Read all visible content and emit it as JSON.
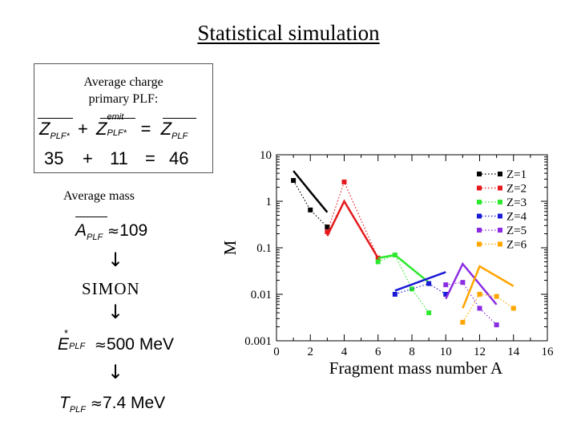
{
  "title": "Statistical simulation",
  "box": {
    "label_line1": "Average charge",
    "label_line2": "primary PLF:",
    "equation": {
      "term1": "Z",
      "sub1": "PLF*",
      "plus": "+",
      "term2": "Z",
      "sup2": "emit",
      "sub2": "PLF*",
      "equals": "=",
      "term3": "Z",
      "sub3": "PLF"
    },
    "values": {
      "v1": "35",
      "plus": "+",
      "v2": "11",
      "equals": "=",
      "v3": "46"
    }
  },
  "mass": {
    "label": "Average mass",
    "symbol": "A",
    "sub": "PLF",
    "approx": "≈",
    "value": "109"
  },
  "arrow": "↓",
  "simon": "SIMON",
  "energy": {
    "symbol": "E",
    "sup": "*",
    "sub": "PLF",
    "approx": "≈",
    "value": "500 MeV"
  },
  "temperature": {
    "symbol": "T",
    "sub": "PLF",
    "approx": "≈",
    "value": "7.4 MeV"
  },
  "chart_data": {
    "type": "line",
    "xlabel": "Fragment mass number A",
    "ylabel": "M",
    "xlim": [
      0,
      16
    ],
    "ylim": [
      0.001,
      10
    ],
    "yscale": "log",
    "xticks": [
      "0",
      "2",
      "4",
      "6",
      "8",
      "10",
      "12",
      "14",
      "16"
    ],
    "yticks": [
      "0.001",
      "0.01",
      "0.1",
      "1",
      "10"
    ],
    "legend_position": "top-right",
    "series": [
      {
        "name": "Z=1",
        "color": "#000000",
        "sim": [
          [
            1,
            4.5
          ],
          [
            2,
            1.6
          ],
          [
            3,
            0.58
          ]
        ],
        "exp": [
          [
            1,
            2.8
          ],
          [
            2,
            0.65
          ],
          [
            3,
            0.28
          ]
        ]
      },
      {
        "name": "Z=2",
        "color": "#e41a1c",
        "sim": [
          [
            3,
            0.18
          ],
          [
            4,
            1.0
          ],
          [
            6,
            0.06
          ]
        ],
        "exp": [
          [
            3,
            0.22
          ],
          [
            4,
            2.6
          ],
          [
            6,
            0.06
          ]
        ]
      },
      {
        "name": "Z=3",
        "color": "#2ee82e",
        "sim": [
          [
            6,
            0.06
          ],
          [
            7,
            0.07
          ],
          [
            9,
            0.018
          ]
        ],
        "exp": [
          [
            6,
            0.05
          ],
          [
            7,
            0.07
          ],
          [
            8,
            0.013
          ],
          [
            9,
            0.004
          ]
        ]
      },
      {
        "name": "Z=4",
        "color": "#1a1ad6",
        "sim": [
          [
            7,
            0.012
          ],
          [
            10,
            0.03
          ]
        ],
        "exp": [
          [
            7,
            0.01
          ],
          [
            9,
            0.017
          ],
          [
            10,
            0.01
          ]
        ]
      },
      {
        "name": "Z=5",
        "color": "#8a2be2",
        "sim": [
          [
            10,
            0.008
          ],
          [
            11,
            0.045
          ],
          [
            13,
            0.006
          ]
        ],
        "exp": [
          [
            10,
            0.016
          ],
          [
            11,
            0.018
          ],
          [
            12,
            0.005
          ],
          [
            13,
            0.0022
          ]
        ]
      },
      {
        "name": "Z=6",
        "color": "#ffa500",
        "sim": [
          [
            11,
            0.005
          ],
          [
            12,
            0.04
          ],
          [
            14,
            0.015
          ]
        ],
        "exp": [
          [
            11,
            0.0025
          ],
          [
            12,
            0.01
          ],
          [
            13,
            0.009
          ],
          [
            14,
            0.005
          ]
        ]
      }
    ]
  }
}
